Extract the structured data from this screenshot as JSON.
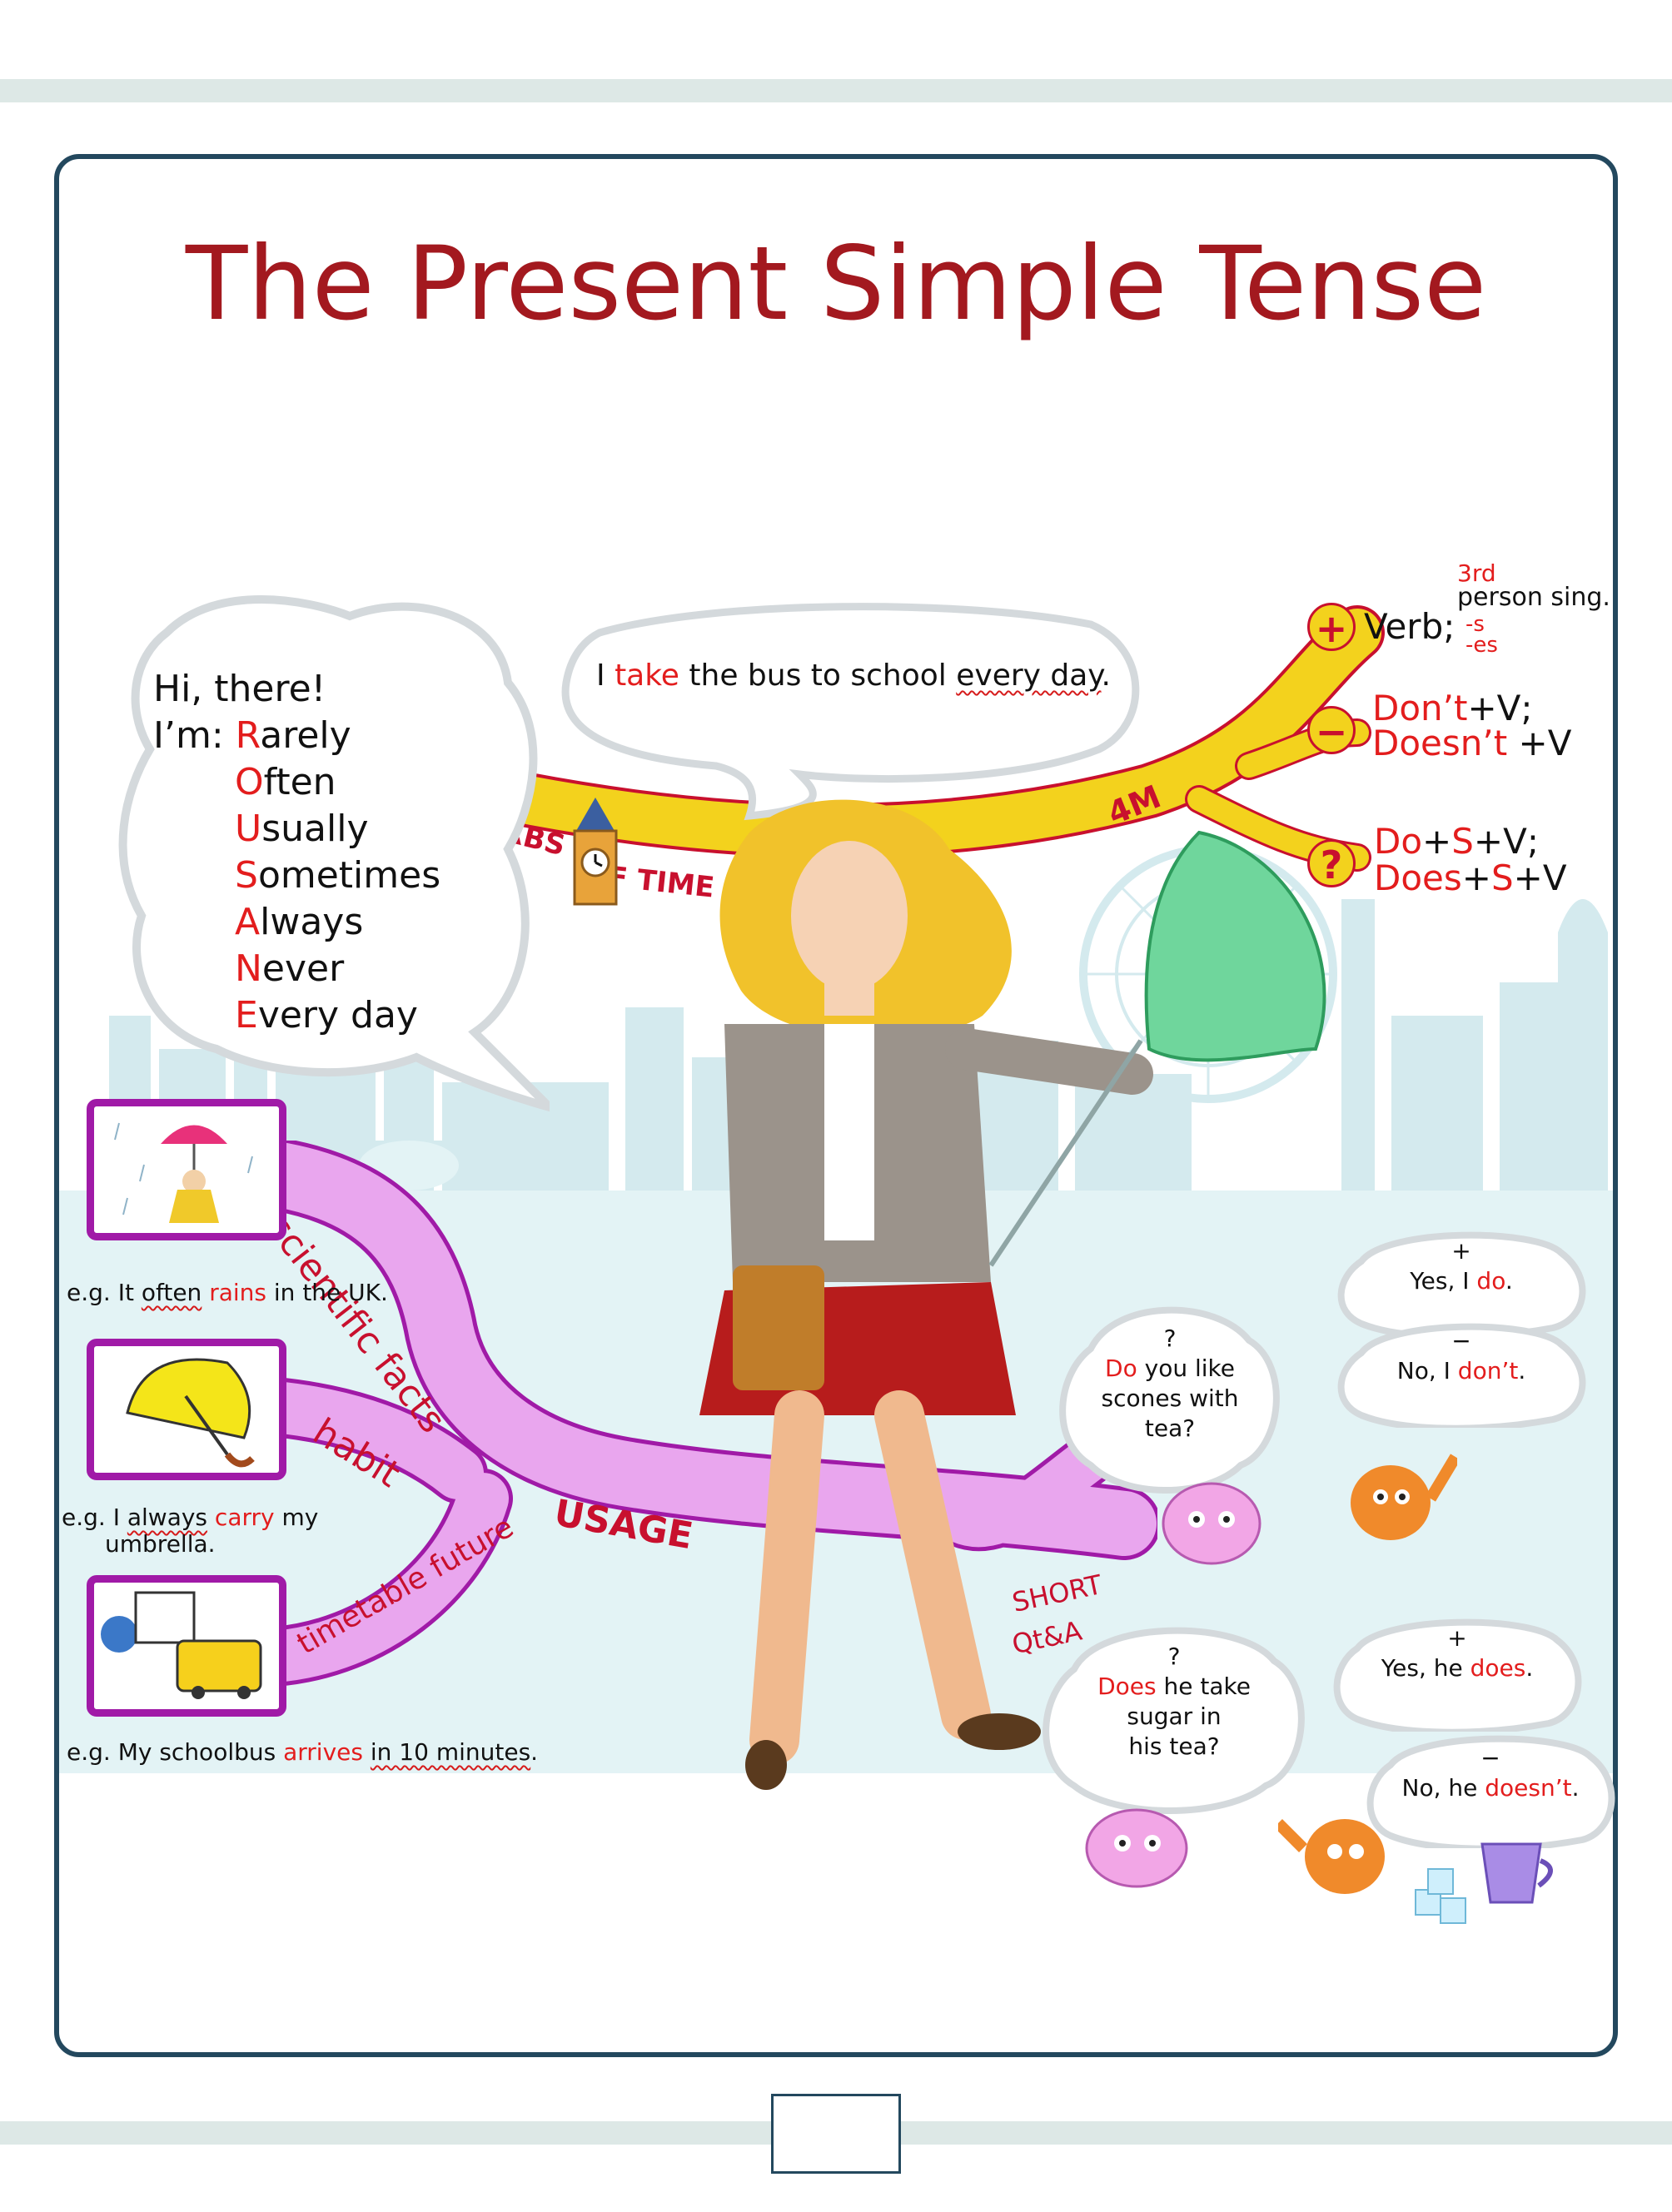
{
  "title": "The Present Simple Tense",
  "speech_bubble": {
    "before": "I ",
    "verb": "take",
    "middle": " the bus to school ",
    "adverb": "every day",
    "end": "."
  },
  "greeting": {
    "line1": "Hi, there!",
    "line2": "I’m: "
  },
  "adverbs": [
    {
      "cap": "R",
      "rest": "arely"
    },
    {
      "cap": "O",
      "rest": "ften"
    },
    {
      "cap": "U",
      "rest": "sually"
    },
    {
      "cap": "S",
      "rest": "ometimes"
    },
    {
      "cap": "A",
      "rest": "lways"
    },
    {
      "cap": "N",
      "rest": "ever"
    },
    {
      "cap": "E",
      "rest": "very day"
    }
  ],
  "branches": {
    "adverbs_of_time": [
      "ADVERBS",
      "F TIME"
    ],
    "four_m": "4M",
    "usage": "USAGE",
    "scientific_facts": "scientific facts",
    "habit": "habit",
    "timetable_future": "timetable future",
    "short_qa": [
      "SHORT",
      "Qt&A"
    ]
  },
  "forms": {
    "positive": {
      "symbol": "+",
      "verb": "Verb;",
      "ordinal": "3rd",
      "person": "person sing.",
      "suffix_s": "-s",
      "suffix_es": "-es"
    },
    "negative": {
      "symbol": "−",
      "line1": {
        "red": "Don’t",
        "rest": "+V;"
      },
      "line2": {
        "red": "Doesn’t",
        "rest": " +V"
      }
    },
    "question": {
      "symbol": "?",
      "line1": {
        "a": "Do",
        "b": "+",
        "c": "S",
        "d": "+V;"
      },
      "line2": {
        "a": "Does",
        "b": "+",
        "c": "S",
        "d": "+V"
      }
    }
  },
  "examples": {
    "facts": {
      "pre": "e.g. It ",
      "adv": "often",
      "sp": " ",
      "verb": "rains",
      "post": " in the UK."
    },
    "habit": {
      "pre": "e.g. I ",
      "adv": "always",
      "sp": " ",
      "verb": "carry",
      "post": " my",
      "line2": "umbrella."
    },
    "timetable": {
      "pre": "e.g. My schoolbus ",
      "verb": "arrives",
      "sp": " ",
      "adv": "in 10 minutes",
      "post": "."
    }
  },
  "short_answers": {
    "q1": {
      "symbol": "?",
      "red": "Do",
      "rest1": " you like",
      "line2": "scones with",
      "line3": "tea?"
    },
    "a1_pos": {
      "symbol": "+",
      "pre": "Yes, I ",
      "red": "do",
      "post": "."
    },
    "a1_neg": {
      "symbol": "−",
      "pre": "No, I ",
      "red": "don’t",
      "post": "."
    },
    "q2": {
      "symbol": "?",
      "red": "Does",
      "rest1": " he take",
      "line2": "sugar in",
      "line3": "his tea?"
    },
    "a2_pos": {
      "symbol": "+",
      "pre": "Yes, he ",
      "red": "does",
      "post": "."
    },
    "a2_neg": {
      "symbol": "−",
      "pre": "No, he ",
      "red": "doesn’t",
      "post": "."
    }
  },
  "colors": {
    "title": "#a3191f",
    "accent_red": "#e31d1d",
    "adverb_branch": "#f3d21d",
    "usage_branch": "#e9a6ee",
    "usage_border": "#a01aa7",
    "frame": "#23485e",
    "skyline": "#cfe7ec",
    "water": "#e3f3f5"
  }
}
